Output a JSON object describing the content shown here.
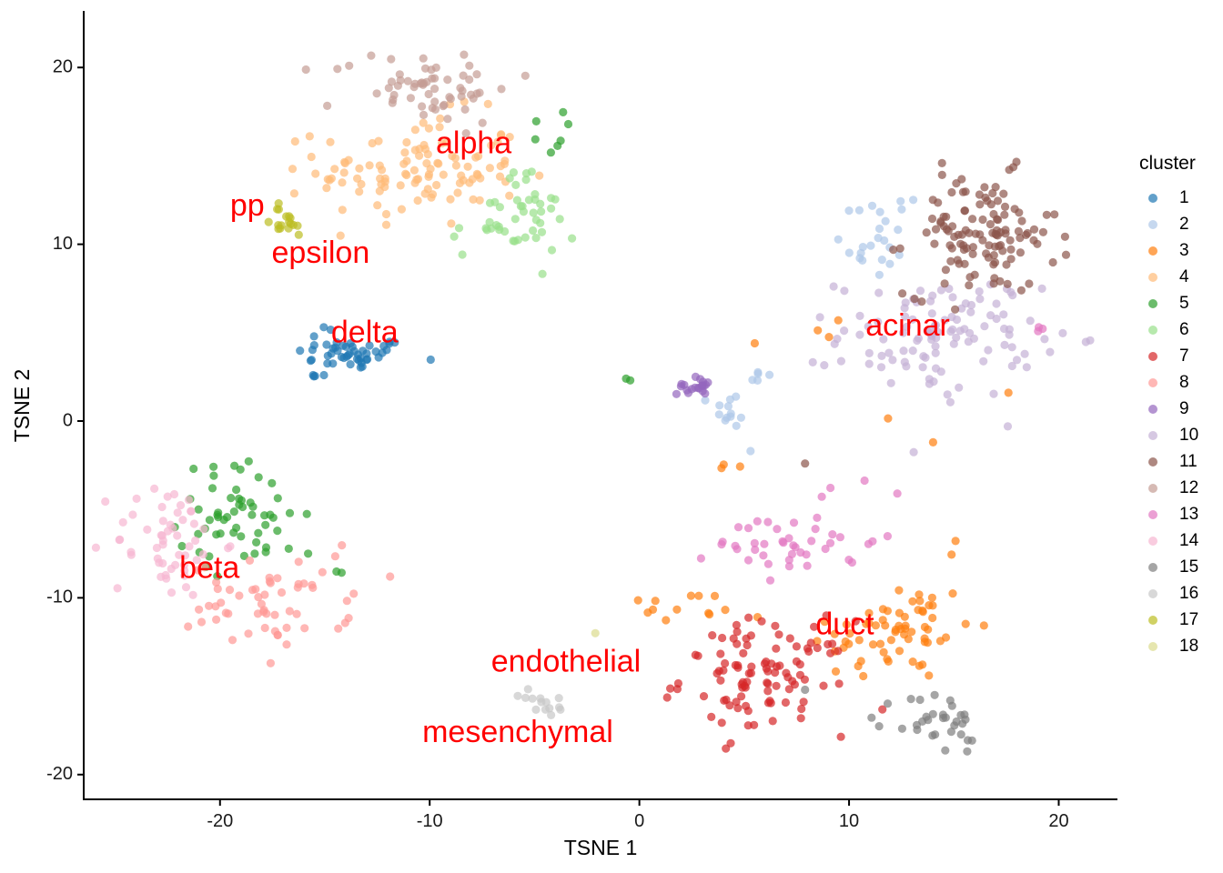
{
  "chart_data": {
    "type": "scatter",
    "title": "",
    "xlabel": "TSNE 1",
    "ylabel": "TSNE 2",
    "xlim": [
      -26.5,
      22.8
    ],
    "ylim": [
      -21.4,
      23.2
    ],
    "x_ticks": [
      -20,
      -10,
      0,
      10,
      20
    ],
    "x_tick_labels": [
      "-20",
      "-10",
      "0",
      "10",
      "20"
    ],
    "y_ticks": [
      -20,
      -10,
      0,
      10,
      20
    ],
    "y_tick_labels": [
      "-20",
      "-10",
      "0",
      "10",
      "20"
    ],
    "grid": false,
    "legend": {
      "title": "cluster",
      "position": "right"
    },
    "series": [
      {
        "name": "1",
        "color": "#1f77b4",
        "clusters": [
          {
            "cx": -13.7,
            "cy": 3.8,
            "sx": 1.35,
            "sy": 0.45,
            "n": 45
          },
          {
            "cx": -15.0,
            "cy": 4.8,
            "sx": 0.4,
            "sy": 0.3,
            "n": 4
          },
          {
            "cx": -14.8,
            "cy": 2.5,
            "sx": 0.6,
            "sy": 0.2,
            "n": 4
          }
        ]
      },
      {
        "name": "2",
        "color": "#aec7e8",
        "clusters": [
          {
            "cx": 11.2,
            "cy": 10.3,
            "sx": 0.9,
            "sy": 1.2,
            "n": 20
          },
          {
            "cx": 12.2,
            "cy": 12.3,
            "sx": 0.6,
            "sy": 0.3,
            "n": 4
          },
          {
            "cx": 4.3,
            "cy": 0.6,
            "sx": 0.45,
            "sy": 0.5,
            "n": 12
          },
          {
            "cx": 5.5,
            "cy": 2.5,
            "sx": 0.5,
            "sy": 0.3,
            "n": 5
          },
          {
            "cx": 5.3,
            "cy": -1.7,
            "sx": 0.1,
            "sy": 0.1,
            "n": 1
          }
        ]
      },
      {
        "name": "3",
        "color": "#ff7f0e",
        "clusters": [
          {
            "cx": 12.5,
            "cy": -11.8,
            "sx": 1.7,
            "sy": 1.5,
            "n": 60
          },
          {
            "cx": 2.0,
            "cy": -10.6,
            "sx": 1.5,
            "sy": 0.5,
            "n": 12
          },
          {
            "cx": 9.3,
            "cy": -12.8,
            "sx": 0.5,
            "sy": 1.0,
            "n": 6
          },
          {
            "cx": 4.6,
            "cy": -2.5,
            "sx": 0.6,
            "sy": 0.4,
            "n": 3
          },
          {
            "cx": 9.2,
            "cy": 4.8,
            "sx": 0.6,
            "sy": 0.6,
            "n": 3
          },
          {
            "cx": 15.2,
            "cy": -6.3,
            "sx": 0.2,
            "sy": 0.3,
            "n": 2
          },
          {
            "cx": 12.6,
            "cy": -0.5,
            "sx": 1.0,
            "sy": 0.5,
            "n": 2
          },
          {
            "cx": 17.6,
            "cy": 1.6,
            "sx": 0.1,
            "sy": 0.1,
            "n": 1
          },
          {
            "cx": 5.5,
            "cy": 4.4,
            "sx": 0.1,
            "sy": 0.1,
            "n": 1
          }
        ]
      },
      {
        "name": "4",
        "color": "#ffbb78",
        "clusters": [
          {
            "cx": -10.5,
            "cy": 14.2,
            "sx": 2.4,
            "sy": 1.6,
            "n": 110
          }
        ]
      },
      {
        "name": "5",
        "color": "#2ca02c",
        "clusters": [
          {
            "cx": -19.0,
            "cy": -5.3,
            "sx": 1.5,
            "sy": 1.5,
            "n": 55
          },
          {
            "cx": -4.8,
            "cy": 16.3,
            "sx": 0.6,
            "sy": 0.6,
            "n": 7
          },
          {
            "cx": -0.7,
            "cy": 2.5,
            "sx": 0.2,
            "sy": 0.2,
            "n": 2
          },
          {
            "cx": -14.0,
            "cy": -8.8,
            "sx": 0.3,
            "sy": 0.2,
            "n": 2
          },
          {
            "cx": -15.8,
            "cy": -7.5,
            "sx": 0.2,
            "sy": 0.2,
            "n": 1
          }
        ]
      },
      {
        "name": "6",
        "color": "#98df8a",
        "clusters": [
          {
            "cx": -6.0,
            "cy": 11.2,
            "sx": 1.5,
            "sy": 1.0,
            "n": 42
          },
          {
            "cx": -5.4,
            "cy": 13.8,
            "sx": 0.5,
            "sy": 0.4,
            "n": 5
          }
        ]
      },
      {
        "name": "7",
        "color": "#d62728",
        "clusters": [
          {
            "cx": 6.0,
            "cy": -14.5,
            "sx": 2.0,
            "sy": 1.6,
            "n": 100
          }
        ]
      },
      {
        "name": "8",
        "color": "#ff9896",
        "clusters": [
          {
            "cx": -17.6,
            "cy": -10.4,
            "sx": 1.9,
            "sy": 1.2,
            "n": 55
          },
          {
            "cx": -14.5,
            "cy": -7.6,
            "sx": 0.5,
            "sy": 1.0,
            "n": 3
          }
        ]
      },
      {
        "name": "9",
        "color": "#9467bd",
        "clusters": [
          {
            "cx": 2.6,
            "cy": 2.0,
            "sx": 0.4,
            "sy": 0.25,
            "n": 20
          }
        ]
      },
      {
        "name": "10",
        "color": "#c5b0d5",
        "clusters": [
          {
            "cx": 14.3,
            "cy": 4.8,
            "sx": 2.4,
            "sy": 1.7,
            "n": 110
          },
          {
            "cx": 18.6,
            "cy": 4.2,
            "sx": 0.4,
            "sy": 0.6,
            "n": 3
          }
        ]
      },
      {
        "name": "11",
        "color": "#8c564b",
        "clusters": [
          {
            "cx": 16.3,
            "cy": 10.5,
            "sx": 1.8,
            "sy": 1.7,
            "n": 120
          },
          {
            "cx": 7.9,
            "cy": -2.4,
            "sx": 0.1,
            "sy": 0.1,
            "n": 1
          }
        ]
      },
      {
        "name": "12",
        "color": "#c49c94",
        "clusters": [
          {
            "cx": -10.3,
            "cy": 18.9,
            "sx": 2.2,
            "sy": 1.0,
            "n": 60
          }
        ]
      },
      {
        "name": "13",
        "color": "#e377c2",
        "clusters": [
          {
            "cx": 7.6,
            "cy": -6.8,
            "sx": 1.9,
            "sy": 1.0,
            "n": 42
          },
          {
            "cx": 19.0,
            "cy": 5.2,
            "sx": 0.3,
            "sy": 0.1,
            "n": 3
          },
          {
            "cx": 9.6,
            "cy": -4.3,
            "sx": 0.6,
            "sy": 0.3,
            "n": 2
          },
          {
            "cx": 12.3,
            "cy": -4.1,
            "sx": 0.1,
            "sy": 0.1,
            "n": 1
          }
        ]
      },
      {
        "name": "14",
        "color": "#f7b6d2",
        "clusters": [
          {
            "cx": -22.5,
            "cy": -6.8,
            "sx": 1.3,
            "sy": 1.7,
            "n": 55
          }
        ]
      },
      {
        "name": "15",
        "color": "#7f7f7f",
        "clusters": [
          {
            "cx": 14.2,
            "cy": -17.0,
            "sx": 1.0,
            "sy": 0.9,
            "n": 30
          },
          {
            "cx": 16.0,
            "cy": -18.0,
            "sx": 0.15,
            "sy": 0.1,
            "n": 2
          },
          {
            "cx": 7.9,
            "cy": -15.2,
            "sx": 0.1,
            "sy": 0.1,
            "n": 1
          }
        ]
      },
      {
        "name": "16",
        "color": "#c7c7c7",
        "clusters": [
          {
            "cx": -4.6,
            "cy": -16.0,
            "sx": 0.6,
            "sy": 0.4,
            "n": 14
          }
        ]
      },
      {
        "name": "17",
        "color": "#bcbd22",
        "clusters": [
          {
            "cx": -16.9,
            "cy": 11.1,
            "sx": 0.6,
            "sy": 0.35,
            "n": 14
          },
          {
            "cx": -17.3,
            "cy": 12.0,
            "sx": 0.15,
            "sy": 0.25,
            "n": 3
          }
        ]
      },
      {
        "name": "18",
        "color": "#dbdb8d",
        "clusters": [
          {
            "cx": -2.1,
            "cy": -12.0,
            "sx": 0.1,
            "sy": 0.1,
            "n": 1
          }
        ]
      }
    ],
    "annotations": [
      {
        "text": "alpha",
        "x": -7.9,
        "y": 15.6
      },
      {
        "text": "pp",
        "x": -18.7,
        "y": 12.1
      },
      {
        "text": "epsilon",
        "x": -15.2,
        "y": 9.4
      },
      {
        "text": "delta",
        "x": -13.1,
        "y": 4.9
      },
      {
        "text": "acinar",
        "x": 12.8,
        "y": 5.3
      },
      {
        "text": "beta",
        "x": -20.5,
        "y": -8.4
      },
      {
        "text": "duct",
        "x": 9.8,
        "y": -11.6
      },
      {
        "text": "endothelial",
        "x": -3.5,
        "y": -13.7
      },
      {
        "text": "mesenchymal",
        "x": -5.8,
        "y": -17.7
      }
    ]
  }
}
